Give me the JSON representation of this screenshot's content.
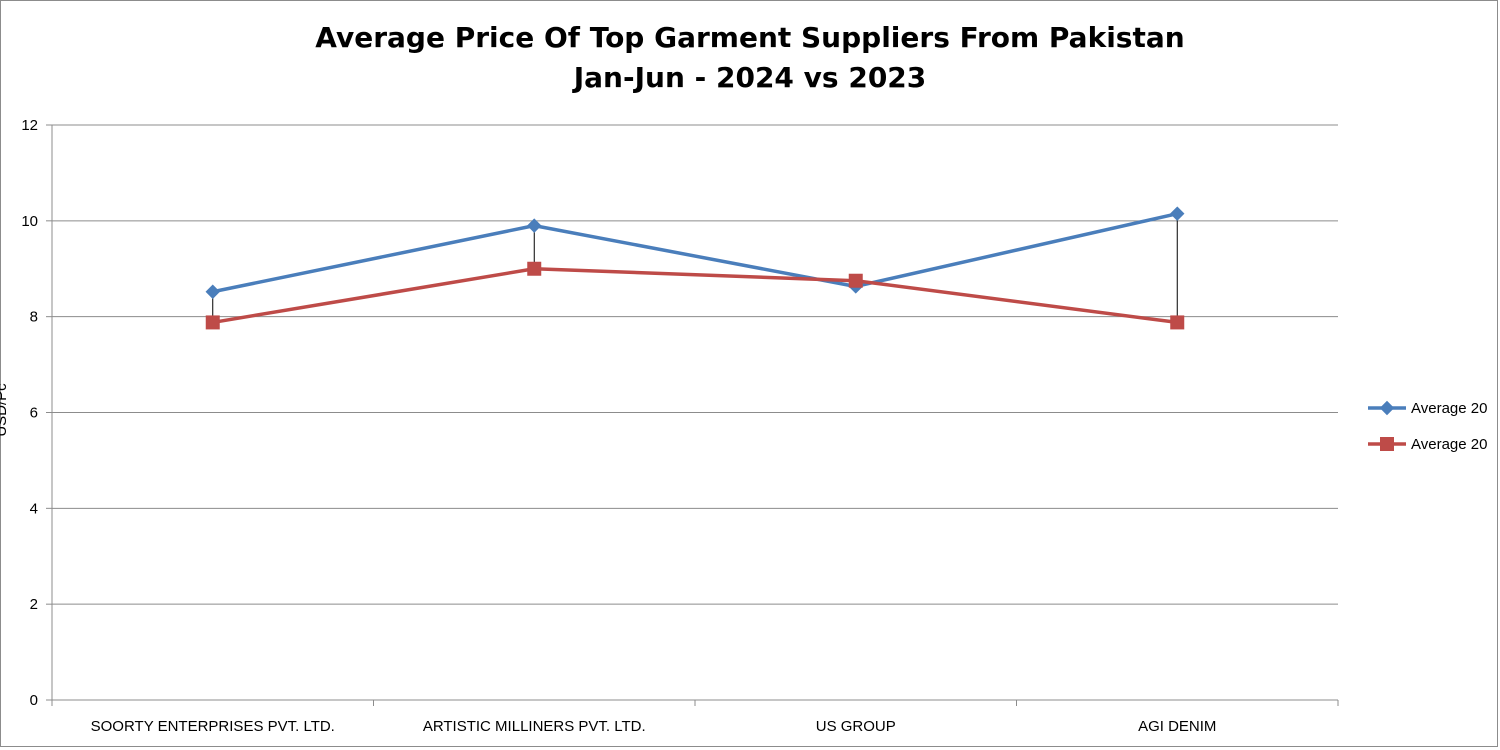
{
  "chart_data": {
    "type": "line",
    "title_line1": "Average Price Of Top Garment Suppliers From Pakistan",
    "title_line2": "Jan-Jun - 2024 vs 2023",
    "xlabel": "",
    "ylabel": "USD/Pc",
    "ylim": [
      0,
      12
    ],
    "yticks": [
      0,
      2,
      4,
      6,
      8,
      10,
      12
    ],
    "grid": true,
    "legend_position": "right",
    "categories": [
      "SOORTY ENTERPRISES PVT. LTD.",
      "ARTISTIC MILLINERS PVT. LTD.",
      "US GROUP",
      "AGI DENIM"
    ],
    "series": [
      {
        "name": "Average 20",
        "marker": "diamond",
        "color": "#4a7ebb",
        "values": [
          8.52,
          9.9,
          8.63,
          10.15
        ]
      },
      {
        "name": "Average 20",
        "marker": "square",
        "color": "#be4b48",
        "values": [
          7.88,
          9.0,
          8.75,
          7.88
        ]
      }
    ],
    "drop_lines": true
  }
}
